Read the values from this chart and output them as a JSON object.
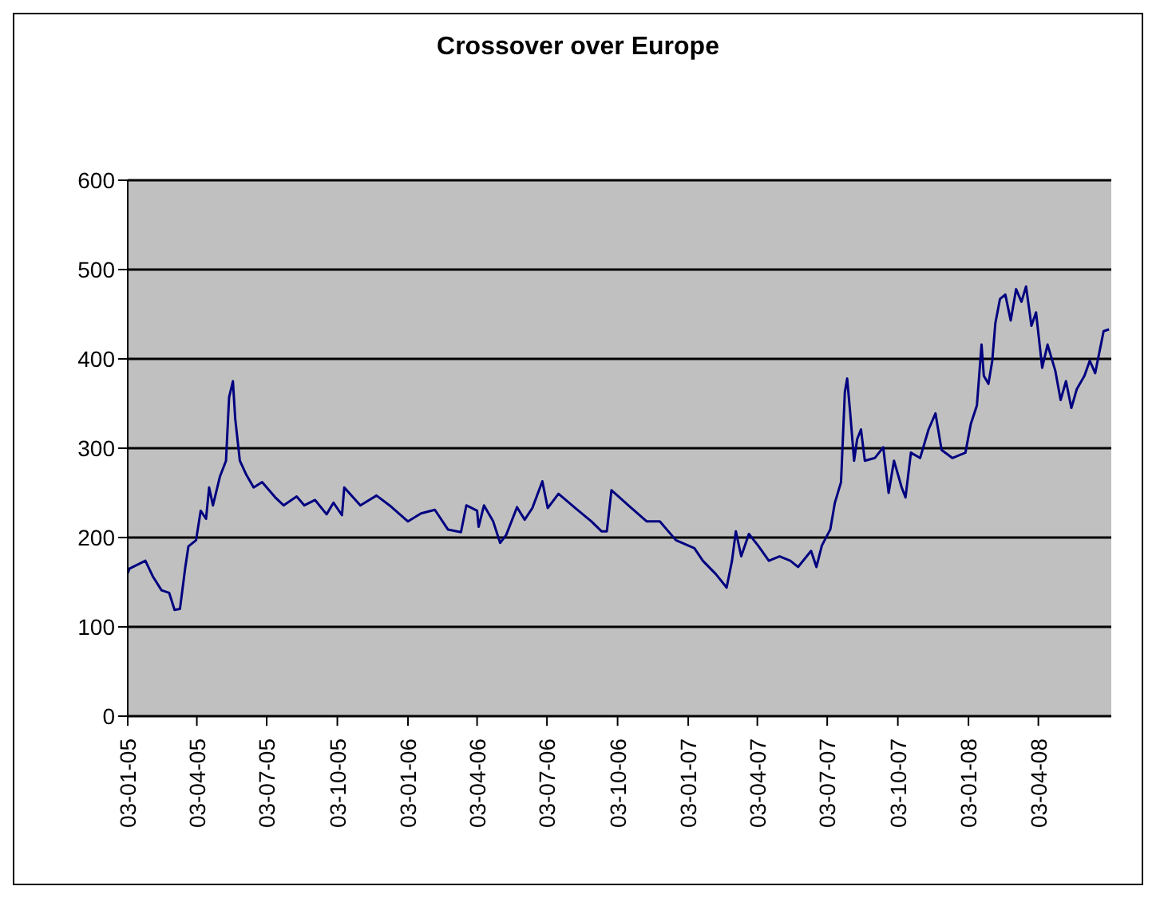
{
  "chart_data": {
    "type": "line",
    "title": "Crossover over Europe",
    "x": [
      "2005-01-03",
      "2005-01-05",
      "2005-01-26",
      "2005-02-05",
      "2005-02-16",
      "2005-02-26",
      "2005-03-05",
      "2005-03-12",
      "2005-03-19",
      "2005-03-23",
      "2005-04-02",
      "2005-04-08",
      "2005-04-15",
      "2005-04-19",
      "2005-04-24",
      "2005-05-03",
      "2005-05-11",
      "2005-05-15",
      "2005-05-20",
      "2005-05-23",
      "2005-05-29",
      "2005-06-06",
      "2005-06-16",
      "2005-06-27",
      "2005-07-14",
      "2005-07-25",
      "2005-08-11",
      "2005-08-21",
      "2005-09-04",
      "2005-09-19",
      "2005-09-28",
      "2005-10-09",
      "2005-10-12",
      "2005-11-02",
      "2005-11-23",
      "2005-12-10",
      "2006-01-03",
      "2006-01-20",
      "2006-02-07",
      "2006-02-24",
      "2006-03-13",
      "2006-03-20",
      "2006-04-03",
      "2006-04-05",
      "2006-04-12",
      "2006-04-24",
      "2006-05-03",
      "2006-05-11",
      "2006-05-25",
      "2006-06-04",
      "2006-06-14",
      "2006-06-27",
      "2006-07-04",
      "2006-07-18",
      "2006-08-09",
      "2006-08-30",
      "2006-09-12",
      "2006-09-19",
      "2006-09-25",
      "2006-10-17",
      "2006-11-10",
      "2006-11-27",
      "2006-12-18",
      "2007-01-11",
      "2007-01-22",
      "2007-02-08",
      "2007-02-22",
      "2007-03-01",
      "2007-03-06",
      "2007-03-13",
      "2007-03-23",
      "2007-04-04",
      "2007-04-18",
      "2007-05-02",
      "2007-05-16",
      "2007-05-26",
      "2007-06-12",
      "2007-06-19",
      "2007-06-26",
      "2007-07-07",
      "2007-07-13",
      "2007-07-21",
      "2007-07-26",
      "2007-07-29",
      "2007-08-02",
      "2007-08-07",
      "2007-08-11",
      "2007-08-16",
      "2007-08-21",
      "2007-09-03",
      "2007-09-14",
      "2007-09-21",
      "2007-09-28",
      "2007-10-08",
      "2007-10-13",
      "2007-10-20",
      "2007-11-01",
      "2007-11-12",
      "2007-11-21",
      "2007-11-29",
      "2007-12-13",
      "2007-12-30",
      "2008-01-06",
      "2008-01-14",
      "2008-01-20",
      "2008-01-23",
      "2008-01-29",
      "2008-02-03",
      "2008-02-07",
      "2008-02-13",
      "2008-02-20",
      "2008-02-27",
      "2008-03-05",
      "2008-03-12",
      "2008-03-18",
      "2008-03-25",
      "2008-03-31",
      "2008-04-08",
      "2008-04-15",
      "2008-04-25",
      "2008-05-02",
      "2008-05-09",
      "2008-05-16",
      "2008-05-23",
      "2008-06-02",
      "2008-06-09",
      "2008-06-16",
      "2008-06-27",
      "2008-07-04"
    ],
    "series": [
      {
        "color": "#000080",
        "values": [
          160,
          165,
          174,
          156,
          141,
          138,
          119,
          120,
          167,
          190,
          197,
          230,
          221,
          256,
          236,
          268,
          286,
          357,
          375,
          333,
          286,
          271,
          256,
          262,
          245,
          236,
          246,
          236,
          242,
          226,
          239,
          225,
          256,
          236,
          247,
          236,
          218,
          227,
          231,
          209,
          206,
          236,
          230,
          212,
          236,
          218,
          194,
          203,
          234,
          220,
          233,
          263,
          233,
          249,
          233,
          218,
          207,
          207,
          253,
          236,
          218,
          218,
          197,
          188,
          174,
          159,
          144,
          174,
          207,
          179,
          204,
          191,
          174,
          179,
          174,
          167,
          185,
          167,
          191,
          209,
          239,
          262,
          363,
          378,
          339,
          286,
          310,
          321,
          286,
          289,
          301,
          250,
          286,
          256,
          245,
          295,
          289,
          321,
          339,
          298,
          289,
          295,
          327,
          348,
          416,
          381,
          372,
          398,
          440,
          467,
          472,
          443,
          478,
          464,
          481,
          437,
          452,
          390,
          416,
          387,
          354,
          375,
          345,
          366,
          381,
          398,
          384,
          431,
          433
        ]
      }
    ],
    "xlim": [
      "2005-01-03",
      "2008-07-07"
    ],
    "xticks": [
      {
        "value": "2005-01-03",
        "label": "03-01-05"
      },
      {
        "value": "2005-04-03",
        "label": "03-04-05"
      },
      {
        "value": "2005-07-03",
        "label": "03-07-05"
      },
      {
        "value": "2005-10-03",
        "label": "03-10-05"
      },
      {
        "value": "2006-01-03",
        "label": "03-01-06"
      },
      {
        "value": "2006-04-03",
        "label": "03-04-06"
      },
      {
        "value": "2006-07-03",
        "label": "03-07-06"
      },
      {
        "value": "2006-10-03",
        "label": "03-10-06"
      },
      {
        "value": "2007-01-03",
        "label": "03-01-07"
      },
      {
        "value": "2007-04-03",
        "label": "03-04-07"
      },
      {
        "value": "2007-07-03",
        "label": "03-07-07"
      },
      {
        "value": "2007-10-03",
        "label": "03-10-07"
      },
      {
        "value": "2008-01-03",
        "label": "03-01-08"
      },
      {
        "value": "2008-04-03",
        "label": "03-04-08"
      }
    ],
    "ylim": [
      0,
      600
    ],
    "yticks": [
      0,
      100,
      200,
      300,
      400,
      500,
      600
    ],
    "grid": "y",
    "marker": "none",
    "line_style": "solid"
  }
}
